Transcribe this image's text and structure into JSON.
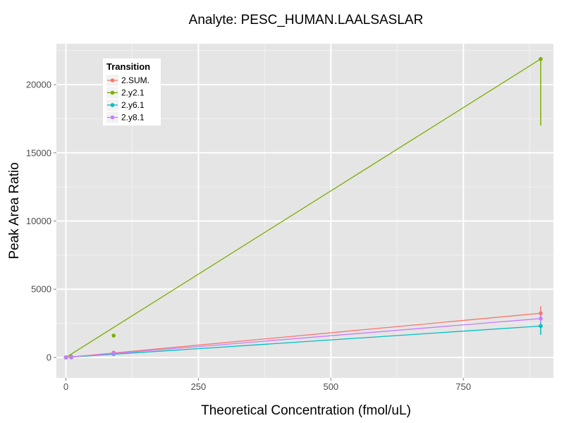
{
  "chart_data": {
    "type": "line",
    "title": "Analyte: PESC_HUMAN.LAALSASLAR",
    "xlabel": "Theoretical Concentration (fmol/uL)",
    "ylabel": "Peak Area Ratio",
    "xlim": [
      -18,
      920
    ],
    "ylim": [
      -1500,
      23000
    ],
    "x_ticks": [
      0,
      250,
      500,
      750
    ],
    "x_tick_labels": [
      "0",
      "250",
      "500",
      "750"
    ],
    "y_ticks": [
      0,
      5000,
      10000,
      15000,
      20000
    ],
    "y_tick_labels": [
      "0",
      "5000",
      "10000",
      "15000",
      "20000"
    ],
    "grid": true,
    "legend": {
      "title": "Transition",
      "position": "top-left"
    },
    "series": [
      {
        "name": "2.SUM.",
        "color": "#F8766D",
        "fit": [
          [
            0,
            0
          ],
          [
            896,
            3240
          ]
        ],
        "points": [
          [
            0,
            0
          ],
          [
            10,
            5
          ],
          [
            90,
            350
          ],
          [
            896,
            3240
          ]
        ],
        "error_bars": [
          [
            896,
            2900,
            3750
          ]
        ]
      },
      {
        "name": "2.y2.1",
        "color": "#7CAE00",
        "fit": [
          [
            0,
            0
          ],
          [
            896,
            21880
          ]
        ],
        "points": [
          [
            0,
            0
          ],
          [
            10,
            60
          ],
          [
            90,
            1600
          ],
          [
            896,
            21880
          ]
        ],
        "error_bars": [
          [
            896,
            17000,
            22000
          ]
        ]
      },
      {
        "name": "2.y6.1",
        "color": "#00BFC4",
        "fit": [
          [
            0,
            0
          ],
          [
            896,
            2300
          ]
        ],
        "points": [
          [
            0,
            0
          ],
          [
            10,
            4
          ],
          [
            90,
            250
          ],
          [
            896,
            2300
          ]
        ],
        "error_bars": [
          [
            896,
            1650,
            2600
          ]
        ]
      },
      {
        "name": "2.y8.1",
        "color": "#C77CFF",
        "fit": [
          [
            0,
            0
          ],
          [
            896,
            2850
          ]
        ],
        "points": [
          [
            0,
            0
          ],
          [
            10,
            5
          ],
          [
            90,
            300
          ],
          [
            896,
            2850
          ]
        ],
        "error_bars": [
          [
            896,
            2550,
            3100
          ]
        ]
      }
    ]
  }
}
